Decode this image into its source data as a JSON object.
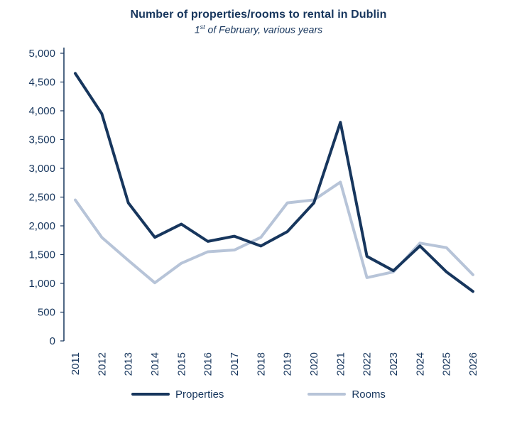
{
  "header": {
    "title": "Number of properties/rooms to rental in Dublin",
    "subtitle_num": "1",
    "subtitle_sup": "st",
    "subtitle_rest": " of February, various years"
  },
  "chart_data": {
    "type": "line",
    "title": "Number of properties/rooms to rental in Dublin",
    "subtitle": "1st of February, various years",
    "xlabel": "",
    "ylabel": "",
    "x": [
      "2011",
      "2012",
      "2013",
      "2014",
      "2015",
      "2016",
      "2017",
      "2018",
      "2019",
      "2020",
      "2021",
      "2022",
      "2023",
      "2024",
      "2025",
      "2026"
    ],
    "series": [
      {
        "name": "Properties",
        "color": "#17365d",
        "values": [
          4650,
          3950,
          2400,
          1800,
          2030,
          1730,
          1820,
          1650,
          1900,
          2400,
          3800,
          1470,
          1220,
          1650,
          1200,
          860
        ]
      },
      {
        "name": "Rooms",
        "color": "#b7c4d8",
        "values": [
          2450,
          1800,
          1400,
          1010,
          1350,
          1550,
          1580,
          1800,
          2400,
          2450,
          2760,
          1100,
          1200,
          1700,
          1620,
          1150
        ]
      }
    ],
    "ylim": [
      0,
      5000
    ],
    "y_step": 500,
    "y_tick_labels": [
      "0",
      "500",
      "1,000",
      "1,500",
      "2,000",
      "2,500",
      "3,000",
      "3,500",
      "4,000",
      "4,500",
      "5,000"
    ],
    "grid": false,
    "legend_position": "bottom",
    "axis_color": "#17365d",
    "text_color": "#17365d",
    "line_width": 4
  }
}
